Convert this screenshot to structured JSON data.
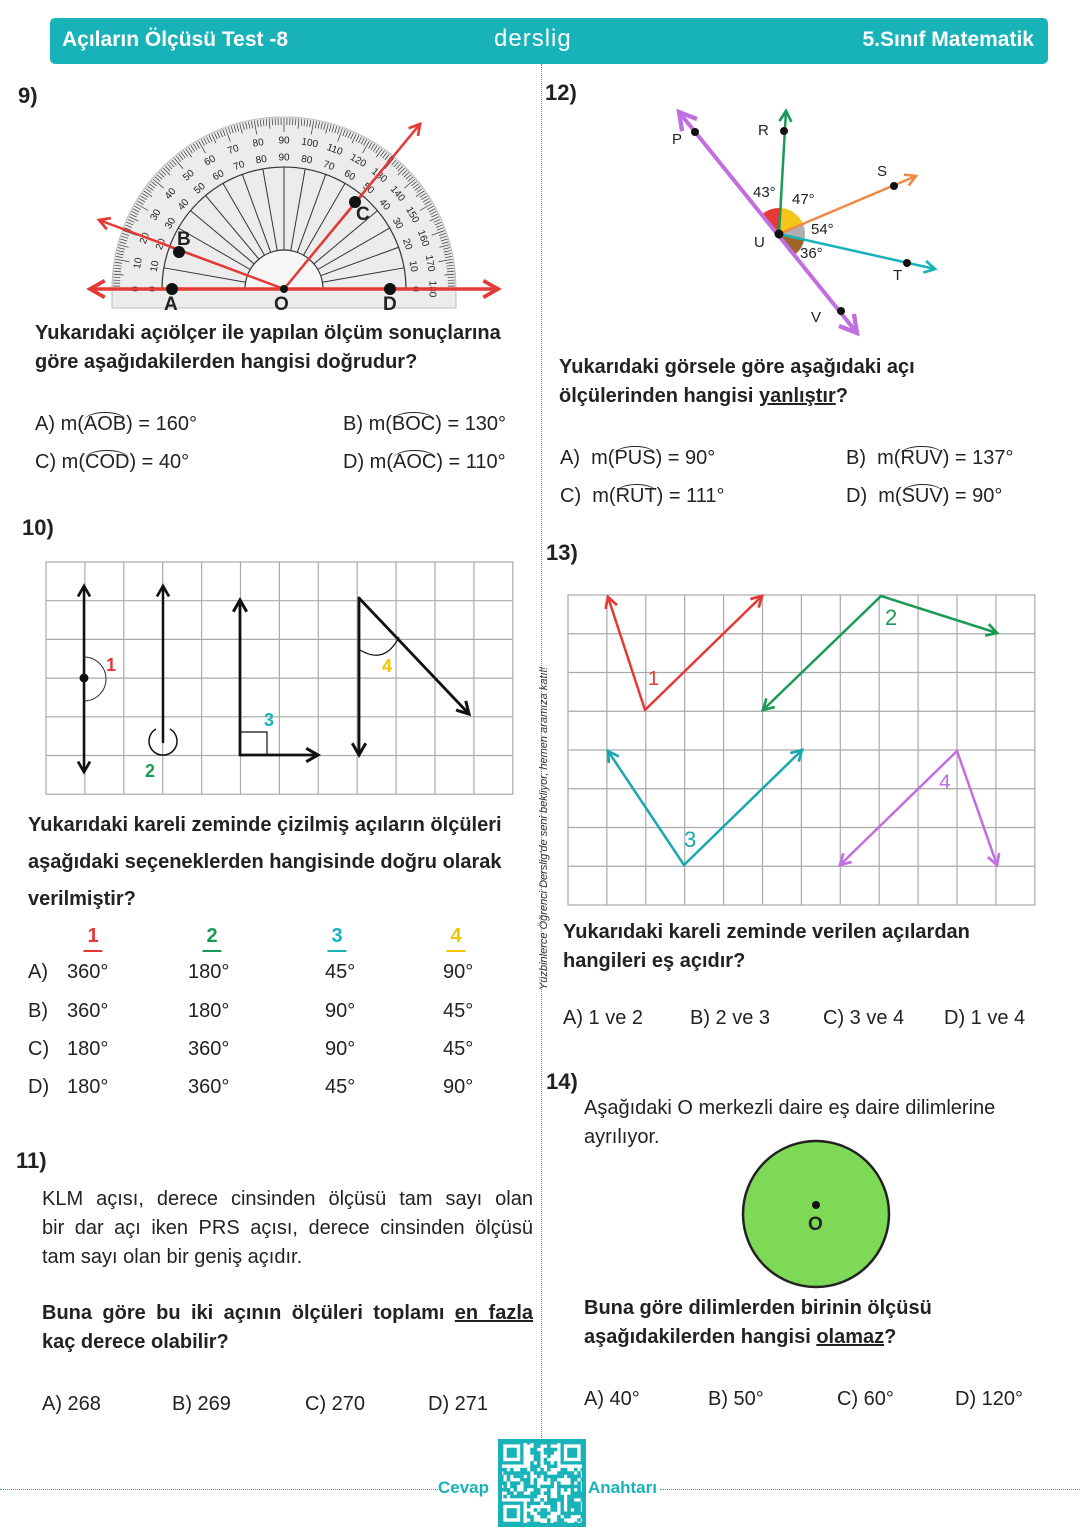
{
  "header": {
    "title": "Açıların Ölçüsü Test -8",
    "brand": "derslig",
    "subject": "5.Sınıf Matematik",
    "color": "#17b3b9"
  },
  "side_text": "Yüzbinlerce Öğrenci Derslig'de seni bekliyor, hemen aramıza katıl!",
  "footer": {
    "left": "Cevap",
    "right": "Anahtarı",
    "qr_icon": "qr-code"
  },
  "q9": {
    "number": "9)",
    "points": {
      "A": "A",
      "B": "B",
      "C": "C",
      "D": "D",
      "O": "O"
    },
    "outer_scale": [
      "0",
      "10",
      "20",
      "30",
      "40",
      "50",
      "60",
      "70",
      "80",
      "90",
      "100",
      "110",
      "120",
      "130",
      "140",
      "150",
      "160",
      "170",
      "180"
    ],
    "inner_scale": [
      "0",
      "10",
      "20",
      "30",
      "40",
      "50",
      "60",
      "70",
      "80",
      "90",
      "80",
      "70",
      "60",
      "50",
      "40",
      "30",
      "20",
      "10",
      "0"
    ],
    "question": [
      "Yukarıdaki açıölçer ile yapılan ölçüm sonuçlarına",
      "göre aşağıdakilerden hangisi doğrudur?"
    ],
    "options": [
      {
        "letter": "A)",
        "pre": "m(",
        "angle": "AOB",
        "value": ") = 160°"
      },
      {
        "letter": "B)",
        "pre": "m(",
        "angle": "BOC",
        "value": ") = 130°"
      },
      {
        "letter": "C)",
        "pre": "m(",
        "angle": "COD",
        "value": ") = 40°"
      },
      {
        "letter": "D)",
        "pre": "m(",
        "angle": "AOC",
        "value": ") = 110°"
      }
    ]
  },
  "q10": {
    "number": "10)",
    "labels": [
      "1",
      "2",
      "3",
      "4"
    ],
    "label_colors": [
      "#e53935",
      "#1a9a55",
      "#17b3b9",
      "#f2c500"
    ],
    "question": [
      "Yukarıdaki kareli zeminde çizilmiş açıların ölçüleri",
      "aşağıdaki seçeneklerden hangisinde doğru olarak",
      "verilmiştir?"
    ],
    "table": {
      "headers": [
        "1",
        "2",
        "3",
        "4"
      ],
      "rows": [
        {
          "letter": "A)",
          "values": [
            "360°",
            "180°",
            "45°",
            "90°"
          ]
        },
        {
          "letter": "B)",
          "values": [
            "360°",
            "180°",
            "90°",
            "45°"
          ]
        },
        {
          "letter": "C)",
          "values": [
            "180°",
            "360°",
            "90°",
            "45°"
          ]
        },
        {
          "letter": "D)",
          "values": [
            "180°",
            "360°",
            "45°",
            "90°"
          ]
        }
      ]
    }
  },
  "q11": {
    "number": "11)",
    "text": [
      "KLM açısı, derece cinsinden ölçüsü tam sayı olan",
      "bir dar açı iken PRS açısı, derece cinsinden ölçüsü",
      "tam sayı olan bir geniş açıdır."
    ],
    "question_pre": "Buna göre bu iki açının ölçüleri toplamı ",
    "question_under": "en fazla",
    "question_line2": "kaç derece olabilir?",
    "options": [
      "A) 268",
      "B) 269",
      "C) 270",
      "D) 271"
    ]
  },
  "q12": {
    "number": "12)",
    "points": {
      "P": "P",
      "R": "R",
      "S": "S",
      "T": "T",
      "U": "U",
      "V": "V"
    },
    "angles": [
      "43°",
      "47°",
      "54°",
      "36°"
    ],
    "sector_colors": [
      "#e53935",
      "#f5c518",
      "#b0b0b0",
      "#a0652a"
    ],
    "question_line1": "Yukarıdaki görsele göre aşağıdaki açı",
    "question_pre": "ölçülerinden hangisi ",
    "question_under": "yanlıştır",
    "question_post": "?",
    "options": [
      {
        "letter": "A)",
        "pre": "m(",
        "angle": "PUS",
        "value": ") = 90°"
      },
      {
        "letter": "B)",
        "pre": "m(",
        "angle": "RUV",
        "value": ") = 137°"
      },
      {
        "letter": "C)",
        "pre": "m(",
        "angle": "RUT",
        "value": ") = 111°"
      },
      {
        "letter": "D)",
        "pre": "m(",
        "angle": "SUV",
        "value": ") = 90°"
      }
    ]
  },
  "q13": {
    "number": "13)",
    "labels": [
      "1",
      "2",
      "3",
      "4"
    ],
    "colors": [
      "#e53935",
      "#1a9a55",
      "#17a8b0",
      "#c06ee0"
    ],
    "question": [
      "Yukarıdaki kareli zeminde verilen açılardan",
      "hangileri eş açıdır?"
    ],
    "options": [
      "A) 1 ve 2",
      "B) 2 ve 3",
      "C) 3 ve 4",
      "D) 1 ve 4"
    ]
  },
  "q14": {
    "number": "14)",
    "text": [
      "Aşağıdaki O merkezli daire eş daire dilimlerine",
      "ayrılıyor."
    ],
    "center_label": "O",
    "circle_color": "#7ed957",
    "question_line1": "Buna göre dilimlerden birinin ölçüsü",
    "question_pre": "aşağıdakilerden hangisi ",
    "question_under": "olamaz",
    "question_post": "?",
    "options": [
      "A) 40°",
      "B) 50°",
      "C) 60°",
      "D) 120°"
    ]
  }
}
